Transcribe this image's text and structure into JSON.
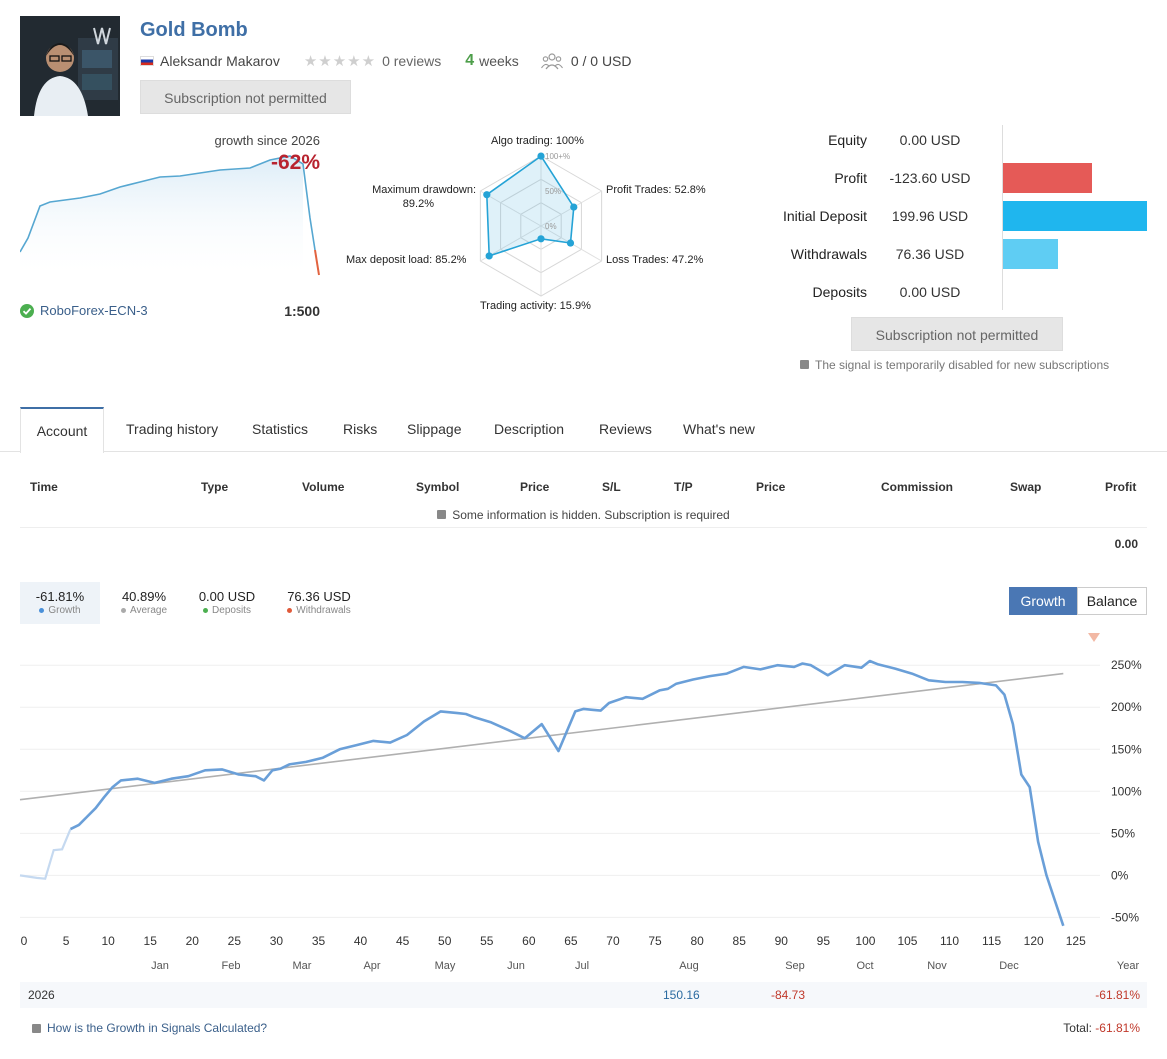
{
  "header": {
    "title": "Gold Bomb",
    "author": "Aleksandr Makarov",
    "reviews": "0 reviews",
    "age_num": "4",
    "age_unit": "weeks",
    "subscribers": "0 / 0 USD",
    "subscribe_button": "Subscription not permitted"
  },
  "mini_chart": {
    "growth_label": "growth since 2026",
    "growth_value": "-62%",
    "broker": "RoboForex-ECN-3",
    "leverage": "1:500"
  },
  "radar": {
    "algo": "Algo trading: 100%",
    "profit_trades": "Profit Trades: 52.8%",
    "loss_trades": "Loss Trades: 47.2%",
    "activity": "Trading activity: 15.9%",
    "load": "Max deposit load: 85.2%",
    "drawdown_l1": "Maximum drawdown:",
    "drawdown_l2": "89.2%",
    "ring_100": "100+%",
    "ring_50": "50%",
    "ring_0": "0%",
    "values": [
      100,
      52.8,
      47.2,
      15.9,
      85.2,
      89.2
    ]
  },
  "metrics": [
    {
      "label": "Equity",
      "value": "0.00 USD",
      "amount": 0.0,
      "color": "#e55a57"
    },
    {
      "label": "Profit",
      "value": "-123.60 USD",
      "amount": 123.6,
      "color": "#e55a57"
    },
    {
      "label": "Initial Deposit",
      "value": "199.96 USD",
      "amount": 199.96,
      "color": "#1fb6ee"
    },
    {
      "label": "Withdrawals",
      "value": "76.36 USD",
      "amount": 76.36,
      "color": "#5fcdf3"
    },
    {
      "label": "Deposits",
      "value": "0.00 USD",
      "amount": 0.0,
      "color": "#5fcdf3"
    }
  ],
  "metrics_button": "Subscription not permitted",
  "metrics_notice": "The signal is temporarily disabled for new subscriptions",
  "tabs": [
    "Account",
    "Trading history",
    "Statistics",
    "Risks",
    "Slippage",
    "Description",
    "Reviews",
    "What's new"
  ],
  "table": {
    "headers": [
      "Time",
      "Type",
      "Volume",
      "Symbol",
      "Price",
      "S/L",
      "T/P",
      "Price",
      "Commission",
      "Swap",
      "Profit"
    ],
    "hidden_note": "Some information is hidden. Subscription is required",
    "total": "0.00"
  },
  "summary": [
    {
      "value": "-61.81%",
      "label": "Growth",
      "color": "#4a90d9"
    },
    {
      "value": "40.89%",
      "label": "Average",
      "color": "#aaaaaa"
    },
    {
      "value": "0.00 USD",
      "label": "Deposits",
      "color": "#4caf50"
    },
    {
      "value": "76.36 USD",
      "label": "Withdrawals",
      "color": "#e05a3a"
    }
  ],
  "toggle": {
    "growth": "Growth",
    "balance": "Balance"
  },
  "chart_data": {
    "type": "line",
    "x_ticks": [
      "0",
      "5",
      "10",
      "15",
      "20",
      "25",
      "30",
      "35",
      "40",
      "45",
      "50",
      "55",
      "60",
      "65",
      "70",
      "75",
      "80",
      "85",
      "90",
      "95",
      "100",
      "105",
      "110",
      "115",
      "120",
      "125"
    ],
    "month_labels": [
      "Jan",
      "Feb",
      "Mar",
      "Apr",
      "May",
      "Jun",
      "Jul",
      "Aug",
      "Sep",
      "Oct",
      "Nov",
      "Dec",
      "Year"
    ],
    "y_ticks": [
      "250%",
      "200%",
      "150%",
      "100%",
      "50%",
      "0%",
      "-50%"
    ],
    "ylim": [
      -65,
      280
    ],
    "xlim": [
      0,
      128
    ],
    "series": [
      {
        "name": "Growth",
        "color": "#6a9fd8",
        "x": [
          0,
          2,
          3,
          4,
          5,
          6,
          7,
          8,
          9,
          10,
          11,
          12,
          14,
          16,
          18,
          20,
          22,
          24,
          26,
          28,
          29,
          30,
          31,
          32,
          34,
          36,
          38,
          40,
          42,
          44,
          46,
          48,
          50,
          52,
          53,
          54,
          56,
          58,
          60,
          62,
          64,
          66,
          67,
          68,
          69,
          70,
          72,
          74,
          76,
          77,
          78,
          80,
          82,
          84,
          86,
          88,
          90,
          91,
          92,
          93,
          94,
          96,
          98,
          100,
          101,
          102,
          104,
          106,
          108,
          110,
          112,
          114,
          116,
          117,
          118,
          119,
          120,
          121,
          122,
          123,
          124
        ],
        "values": [
          0,
          -3,
          -4,
          30,
          31,
          55,
          60,
          70,
          80,
          93,
          105,
          113,
          115,
          110,
          115,
          118,
          125,
          126,
          120,
          118,
          113,
          125,
          127,
          132,
          135,
          140,
          150,
          155,
          160,
          158,
          167,
          183,
          195,
          193,
          192,
          188,
          182,
          173,
          163,
          180,
          148,
          195,
          198,
          197,
          196,
          205,
          212,
          210,
          220,
          222,
          228,
          233,
          237,
          240,
          248,
          245,
          250,
          249,
          248,
          252,
          250,
          238,
          250,
          247,
          255,
          251,
          246,
          240,
          232,
          230,
          230,
          229,
          226,
          215,
          180,
          120,
          105,
          40,
          0,
          -30,
          -60
        ]
      },
      {
        "name": "Average",
        "color": "#b0b0b0",
        "x": [
          0,
          124
        ],
        "values": [
          90,
          240
        ]
      }
    ]
  },
  "footer": {
    "year": "2026",
    "aug": "150.16",
    "sep": "-84.73",
    "year_total": "-61.81%",
    "help": "How is the Growth in Signals Calculated?",
    "total_label": "Total:",
    "total_value": "-61.81%"
  }
}
